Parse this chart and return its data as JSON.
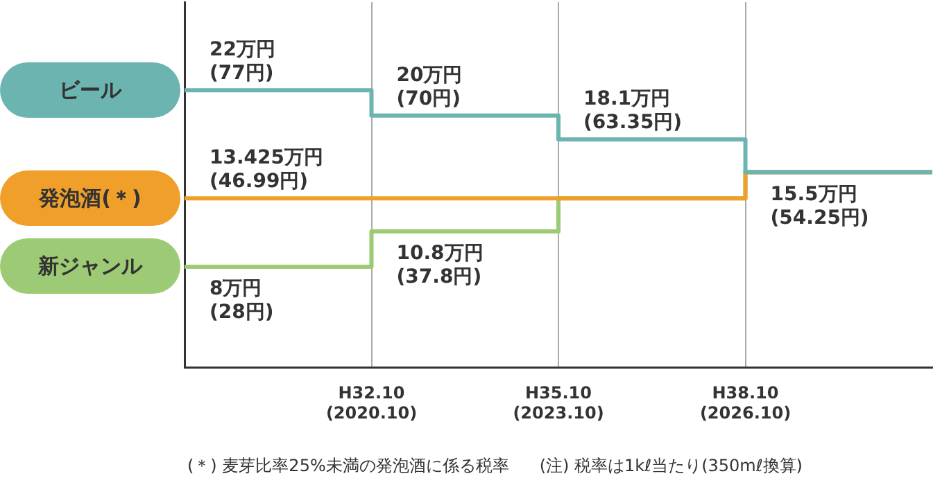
{
  "chart_data": {
    "type": "step",
    "categories": [
      null,
      "H32.10\n(2020.10)",
      "H35.10\n(2023.10)",
      "H38.10\n(2026.10)",
      null
    ],
    "series": [
      {
        "name": "ビール",
        "color": "#6cb4b0",
        "values": [
          22,
          20,
          18.1,
          15.5,
          15.5
        ],
        "value_labels": [
          "22万円\n(77円)",
          "20万円\n(70円)",
          "18.1万円\n(63.35円)",
          "15.5万円\n(54.25円)",
          null
        ]
      },
      {
        "name": "発泡酒(＊)",
        "color": "#f0a02a",
        "values": [
          13.425,
          13.425,
          13.425,
          15.5,
          15.5
        ],
        "value_labels": [
          "13.425万円\n(46.99円)",
          null,
          null,
          null,
          null
        ]
      },
      {
        "name": "新ジャンル",
        "color": "#9dca74",
        "values": [
          8,
          10.8,
          13.425,
          15.5,
          15.5
        ],
        "value_labels": [
          "8万円\n(28円)",
          "10.8万円\n(37.8円)",
          null,
          null,
          null
        ]
      }
    ],
    "ylim": [
      0,
      29
    ],
    "grid": "x",
    "legend": "left",
    "tick_labels": "x",
    "line_style": "solid",
    "annotations": [
      "(＊) 麦芽比率25%未満の発泡酒に係る税率",
      "(注) 税率は1kℓ当たり(350mℓ換算)"
    ]
  }
}
